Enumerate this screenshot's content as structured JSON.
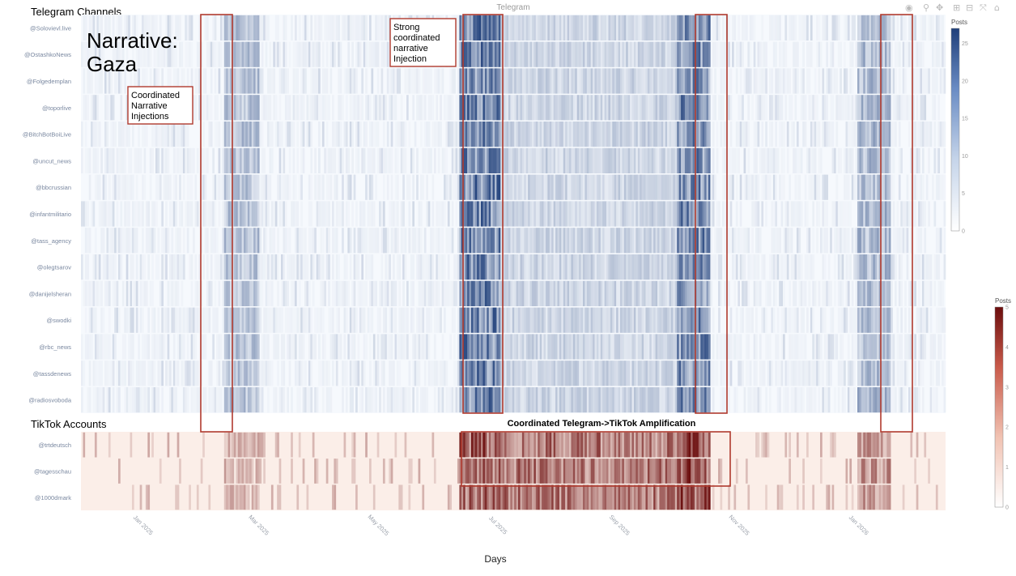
{
  "chart_data": {
    "type": "heatmap",
    "title": "Telegram",
    "xlabel": "Days",
    "x_range": [
      "2024-12-01",
      "2026-02-15"
    ],
    "x_ticks": [
      "Jan 2025",
      "Mar 2025",
      "May 2025",
      "Jul 2025",
      "Sep 2025",
      "Nov 2025",
      "Jan 2026"
    ],
    "x_tick_dates": [
      "2025-01-01",
      "2025-03-01",
      "2025-05-01",
      "2025-07-01",
      "2025-09-01",
      "2025-11-01",
      "2026-01-01"
    ],
    "panels": [
      {
        "name": "Telegram Channels",
        "colorscale": "blues",
        "colorbar_title": "Posts",
        "zmin": 0,
        "zmax": 27,
        "colorbar_ticks": [
          0,
          5,
          10,
          15,
          20,
          25
        ],
        "rows": [
          "@Solovievl.live",
          "@OstashkoNews",
          "@Folgedemplan",
          "@toporlive",
          "@BitchBotBoiLive",
          "@uncut_news",
          "@bbcrussian",
          "@infantmilitario",
          "@tass_agency",
          "@olegtsarov",
          "@danijelsheran",
          "@swodki",
          "@rbc_news",
          "@tassdenews",
          "@radiosvoboda"
        ]
      },
      {
        "name": "TikTok Accounts",
        "colorscale": "reds",
        "colorbar_title": "Posts",
        "zmin": 0,
        "zmax": 5,
        "colorbar_ticks": [
          0,
          1,
          2,
          3,
          4,
          5
        ],
        "rows": [
          "@trtdeutsch",
          "@tagesschau",
          "@1000dmark"
        ]
      }
    ],
    "activity_windows": [
      {
        "start": "2025-02-12",
        "end": "2025-03-01",
        "telegram_peak": 12,
        "tiktok_peak": 2
      },
      {
        "start": "2025-06-12",
        "end": "2025-07-02",
        "telegram_peak": 26,
        "tiktok_peak": 5
      },
      {
        "start": "2025-07-02",
        "end": "2025-10-15",
        "telegram_peak": 8,
        "tiktok_peak": 4
      },
      {
        "start": "2025-10-01",
        "end": "2025-10-17",
        "telegram_peak": 24,
        "tiktok_peak": 5
      },
      {
        "start": "2026-01-01",
        "end": "2026-01-17",
        "telegram_peak": 14,
        "tiktok_peak": 3
      }
    ],
    "baseline": {
      "telegram": 3,
      "tiktok": 1
    }
  },
  "annotations": {
    "telegram_section": "Telegram Channels",
    "tiktok_section": "TikTok Accounts",
    "narrative_line1": "Narrative:",
    "narrative_line2": "Gaza",
    "coordinated": [
      "Coordinated",
      "Narrative",
      "Injections"
    ],
    "strong": [
      "Strong",
      "coordinated",
      "narrative",
      "Injection"
    ],
    "amplification": "Coordinated Telegram->TikTok Amplification"
  },
  "modebar": [
    "camera-icon",
    "zoom-icon",
    "pan-icon",
    "zoom-in-icon",
    "zoom-out-icon",
    "autoscale-icon",
    "home-icon"
  ],
  "colors": {
    "blue_high": "#1f3f7a",
    "red_high": "#6b0d0d",
    "annotation_box": "#b03a2e"
  }
}
